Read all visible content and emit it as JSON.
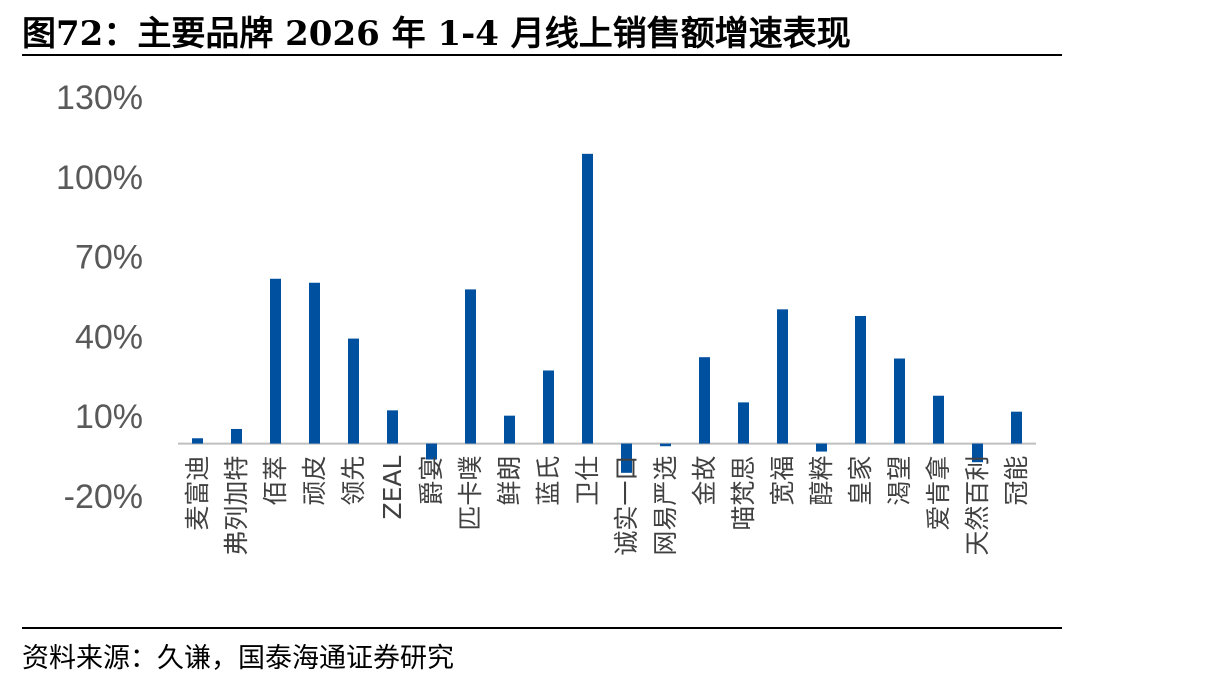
{
  "title": "图72：主要品牌 2026 年 1-4 月线上销售额增速表现",
  "source": "资料来源：久谦，国泰海通证券研究",
  "colors": {
    "bar": "#0050A0",
    "axis": "#BFBFBF",
    "tick_text": "#595959"
  },
  "chart_data": {
    "type": "bar",
    "title": "主要品牌 2026 年 1-4 月线上销售额增速表现",
    "xlabel": "",
    "ylabel": "",
    "ylim": [
      -20,
      130
    ],
    "yticks": [
      -20,
      10,
      40,
      70,
      100,
      130
    ],
    "ytick_labels": [
      "-20%",
      "10%",
      "40%",
      "70%",
      "100%",
      "130%"
    ],
    "grid": false,
    "legend": "none",
    "categories": [
      "麦富迪",
      "弗列加特",
      "佰萃",
      "顽皮",
      "领先",
      "ZEAL",
      "爵宴",
      "匹卡噗",
      "鲜朗",
      "蓝氏",
      "卫仕",
      "诚实一口",
      "网易严选",
      "金故",
      "喵梵思",
      "宽福",
      "醇粹",
      "皇家",
      "渴望",
      "爱肯拿",
      "天然百利",
      "冠能"
    ],
    "values": [
      2,
      5.5,
      62,
      60.5,
      39.5,
      12.5,
      -6,
      58,
      10.5,
      27.5,
      109,
      -11,
      -1,
      32.5,
      15.5,
      50.5,
      -3,
      48,
      32,
      18,
      -7,
      12
    ]
  }
}
